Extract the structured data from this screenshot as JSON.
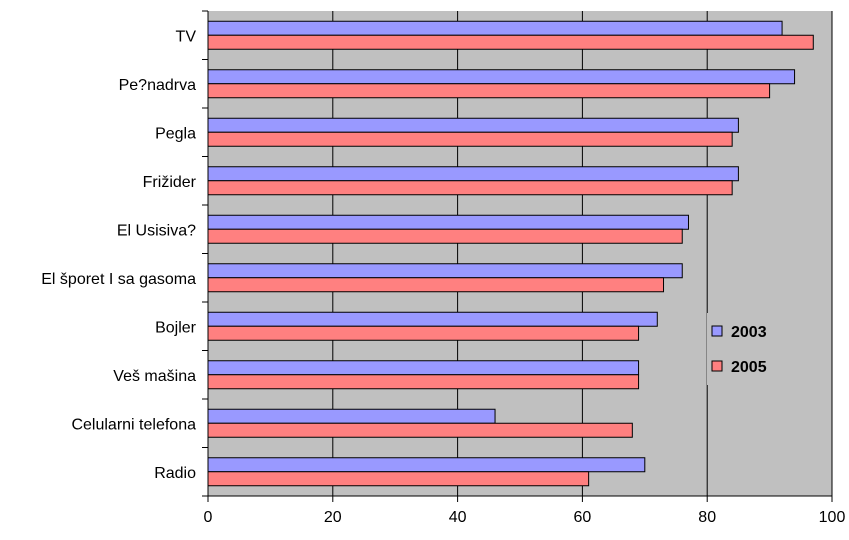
{
  "chart_data": {
    "type": "bar",
    "orientation": "horizontal",
    "categories": [
      "TV",
      "Pe?nadrva",
      "Pegla",
      "Frižider",
      "El Usisiva?",
      "El šporet I sa gasoma",
      "Bojler",
      "Veš mašina",
      "Celularni telefona",
      "Radio"
    ],
    "series": [
      {
        "name": "2003",
        "values": [
          92,
          94,
          85,
          85,
          77,
          76,
          72,
          69,
          46,
          70
        ],
        "color": "#9999ff"
      },
      {
        "name": "2005",
        "values": [
          97,
          90,
          84,
          84,
          76,
          73,
          69,
          69,
          68,
          61
        ],
        "color": "#ff8080"
      }
    ],
    "xlim": [
      0,
      100
    ],
    "x_ticks": [
      "0",
      "20",
      "40",
      "60",
      "80",
      "100"
    ],
    "plot_background": "#c0c0c0",
    "grid": "vertical",
    "legend_position": "right-inside"
  }
}
